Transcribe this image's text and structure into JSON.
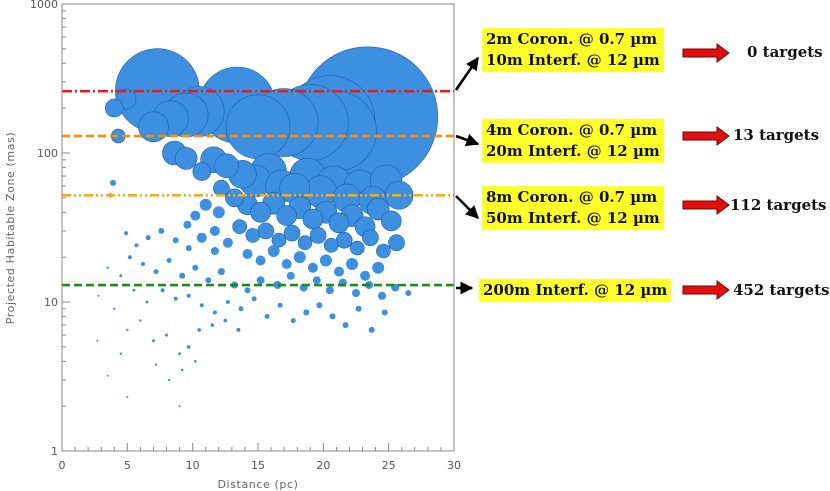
{
  "chart_data": {
    "type": "scatter",
    "xlabel": "Distance (pc)",
    "ylabel": "Projected Habitable Zone (mas)",
    "xlim": [
      0,
      30
    ],
    "ylim": [
      1,
      1000
    ],
    "yscale": "log",
    "x_ticks": [
      "0",
      "5",
      "10",
      "15",
      "20",
      "25",
      "30"
    ],
    "y_ticks": [
      "1",
      "10",
      "100",
      "1000"
    ],
    "bubble_color": "#3d8fe0",
    "points": [
      [
        7.3,
        262,
        42
      ],
      [
        13.4,
        210,
        38
      ],
      [
        23.4,
        175,
        70
      ],
      [
        21.0,
        140,
        40
      ],
      [
        20.5,
        165,
        45
      ],
      [
        17.0,
        160,
        34
      ],
      [
        15.0,
        150,
        32
      ],
      [
        19.0,
        160,
        38
      ],
      [
        10.5,
        190,
        25
      ],
      [
        9.5,
        180,
        22
      ],
      [
        8.3,
        170,
        18
      ],
      [
        7.0,
        150,
        15
      ],
      [
        4.0,
        200,
        9
      ],
      [
        4.9,
        230,
        10
      ],
      [
        4.3,
        130,
        7
      ],
      [
        3.7,
        52,
        2
      ],
      [
        3.9,
        63,
        3
      ],
      [
        8.6,
        100,
        12
      ],
      [
        9.5,
        92,
        11
      ],
      [
        10.7,
        75,
        9
      ],
      [
        11.6,
        90,
        13
      ],
      [
        12.6,
        82,
        12
      ],
      [
        13.8,
        72,
        14
      ],
      [
        14.8,
        65,
        16
      ],
      [
        15.8,
        75,
        18
      ],
      [
        16.8,
        60,
        16
      ],
      [
        17.8,
        58,
        15
      ],
      [
        18.8,
        70,
        18
      ],
      [
        19.8,
        55,
        16
      ],
      [
        20.8,
        62,
        18
      ],
      [
        21.8,
        50,
        14
      ],
      [
        22.8,
        60,
        16
      ],
      [
        23.8,
        48,
        14
      ],
      [
        24.8,
        65,
        16
      ],
      [
        25.8,
        52,
        14
      ],
      [
        12.2,
        58,
        8
      ],
      [
        13.2,
        50,
        9
      ],
      [
        14.2,
        45,
        10
      ],
      [
        15.2,
        40,
        10
      ],
      [
        16.2,
        46,
        11
      ],
      [
        17.2,
        38,
        10
      ],
      [
        18.2,
        43,
        11
      ],
      [
        19.2,
        36,
        10
      ],
      [
        20.2,
        40,
        11
      ],
      [
        21.2,
        34,
        10
      ],
      [
        22.2,
        38,
        11
      ],
      [
        23.2,
        32,
        10
      ],
      [
        24.2,
        42,
        11
      ],
      [
        25.2,
        35,
        10
      ],
      [
        13.6,
        32,
        7
      ],
      [
        14.6,
        28,
        7
      ],
      [
        15.6,
        30,
        8
      ],
      [
        16.6,
        26,
        7
      ],
      [
        17.6,
        29,
        8
      ],
      [
        18.6,
        25,
        7
      ],
      [
        19.6,
        28,
        8
      ],
      [
        20.6,
        24,
        7
      ],
      [
        21.6,
        26,
        8
      ],
      [
        22.6,
        23,
        7
      ],
      [
        23.6,
        27,
        8
      ],
      [
        24.6,
        22,
        7
      ],
      [
        25.6,
        25,
        8
      ],
      [
        14.2,
        21,
        5
      ],
      [
        15.2,
        19,
        5
      ],
      [
        16.2,
        22,
        6
      ],
      [
        17.2,
        18,
        5
      ],
      [
        18.2,
        20,
        6
      ],
      [
        19.2,
        17,
        5
      ],
      [
        20.2,
        19,
        6
      ],
      [
        21.2,
        16,
        5
      ],
      [
        22.2,
        18,
        6
      ],
      [
        23.2,
        15,
        5
      ],
      [
        24.2,
        17,
        6
      ],
      [
        15.2,
        14,
        4
      ],
      [
        16.5,
        13,
        4
      ],
      [
        17.5,
        15,
        4
      ],
      [
        18.5,
        12.5,
        4
      ],
      [
        19.5,
        14,
        4
      ],
      [
        20.5,
        12,
        4
      ],
      [
        21.5,
        13.5,
        4
      ],
      [
        22.5,
        11.5,
        4
      ],
      [
        23.5,
        13,
        4
      ],
      [
        24.5,
        11,
        4
      ],
      [
        25.5,
        12.5,
        4
      ],
      [
        26.5,
        11.5,
        3
      ],
      [
        12.0,
        40,
        6
      ],
      [
        11.0,
        45,
        6
      ],
      [
        10.2,
        38,
        5
      ],
      [
        9.6,
        33,
        4
      ],
      [
        11.7,
        30,
        5
      ],
      [
        10.7,
        27,
        5
      ],
      [
        12.7,
        25,
        5
      ],
      [
        11.7,
        22,
        4
      ],
      [
        9.7,
        23,
        3
      ],
      [
        8.7,
        26,
        3
      ],
      [
        7.6,
        30,
        3
      ],
      [
        6.6,
        27,
        2.5
      ],
      [
        5.7,
        24,
        2
      ],
      [
        4.9,
        29,
        2
      ],
      [
        5.2,
        20,
        2
      ],
      [
        6.2,
        18,
        2
      ],
      [
        7.2,
        16,
        2.5
      ],
      [
        8.2,
        19,
        2.5
      ],
      [
        9.2,
        15,
        3
      ],
      [
        10.2,
        17,
        3
      ],
      [
        11.2,
        14,
        3
      ],
      [
        12.2,
        16,
        3.5
      ],
      [
        13.2,
        13,
        3.5
      ],
      [
        14.2,
        12,
        3
      ],
      [
        7.7,
        12,
        2
      ],
      [
        8.7,
        10.5,
        2
      ],
      [
        9.7,
        11,
        2
      ],
      [
        10.7,
        9.5,
        2
      ],
      [
        11.7,
        8.5,
        2
      ],
      [
        12.7,
        10,
        2
      ],
      [
        13.7,
        9,
        2.5
      ],
      [
        14.7,
        10.5,
        2.5
      ],
      [
        15.7,
        8,
        2.5
      ],
      [
        16.7,
        9.5,
        2.5
      ],
      [
        17.7,
        7.5,
        2.5
      ],
      [
        18.7,
        8.5,
        3
      ],
      [
        19.7,
        9.5,
        3
      ],
      [
        20.7,
        8,
        3
      ],
      [
        21.7,
        7,
        3
      ],
      [
        22.7,
        9,
        3
      ],
      [
        23.7,
        6.5,
        3
      ],
      [
        24.7,
        8.5,
        3
      ],
      [
        5.5,
        12,
        1.5
      ],
      [
        6.5,
        10,
        1.5
      ],
      [
        4.5,
        15,
        1.5
      ],
      [
        3.5,
        17,
        1.2
      ],
      [
        4.0,
        9,
        1.2
      ],
      [
        5.0,
        6.5,
        1.2
      ],
      [
        6.0,
        7.5,
        1.2
      ],
      [
        7.0,
        5.5,
        1.5
      ],
      [
        8.0,
        6,
        1.5
      ],
      [
        9.0,
        4.5,
        1.5
      ],
      [
        9.7,
        5,
        1.8
      ],
      [
        10.5,
        6.5,
        1.8
      ],
      [
        11.5,
        7,
        1.8
      ],
      [
        8.2,
        3,
        1.2
      ],
      [
        9.2,
        3.5,
        1.3
      ],
      [
        4.5,
        4.5,
        1.2
      ],
      [
        5.0,
        2.3,
        1
      ],
      [
        3.5,
        3.2,
        1
      ],
      [
        2.7,
        5.5,
        1
      ],
      [
        9.0,
        2,
        1
      ],
      [
        7.2,
        3.8,
        1.2
      ],
      [
        10.2,
        4,
        1.3
      ],
      [
        12.5,
        7.5,
        1.8
      ],
      [
        13.5,
        6.5,
        2
      ],
      [
        2.8,
        11,
        1
      ]
    ],
    "thresholds": [
      {
        "value": 260,
        "color": "#e02020",
        "style": "dashdot"
      },
      {
        "value": 130,
        "color": "#ff8c00",
        "style": "dashed"
      },
      {
        "value": 52,
        "color": "#ffaa00",
        "style": "dashdotdot"
      },
      {
        "value": 13,
        "color": "#1a8a1a",
        "style": "dashed"
      }
    ]
  },
  "callouts": [
    {
      "lines": [
        "2m Coron. @ 0.7 µm",
        "10m Interf. @ 12 µm"
      ],
      "result": "0 targets"
    },
    {
      "lines": [
        "4m Coron. @ 0.7 µm",
        "20m Interf. @ 12 µm"
      ],
      "result": "13 targets"
    },
    {
      "lines": [
        "8m Coron. @ 0.7 µm",
        "50m Interf. @ 12 µm"
      ],
      "result": "112 targets"
    },
    {
      "lines": [
        "200m Interf. @ 12 µm"
      ],
      "result": "452 targets"
    }
  ],
  "colors": {
    "highlight": "#ffff2a",
    "arrow_red": "#e01010",
    "axis": "#888888"
  }
}
